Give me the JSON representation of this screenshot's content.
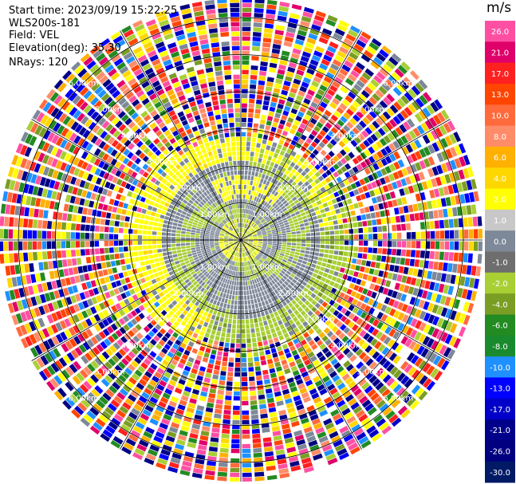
{
  "info": {
    "start_label": "Start time:",
    "start_time": "2023/09/19 15:22:25",
    "site": "WLS200s-181",
    "field_label": "Field:",
    "field": "VEL",
    "elevation_label": "Elevation(deg):",
    "elevation": "35.30",
    "nrays_label": "NRays:",
    "nrays": "120"
  },
  "chart_data": {
    "type": "heatmap",
    "projection": "polar-ppi",
    "field": "VEL",
    "units": "m/s",
    "nrays": 120,
    "range_rings_km": [
      1.0,
      2.0,
      3.0,
      4.0,
      5.0,
      6.0
    ],
    "range_ring_labels": [
      "1.00km",
      "2.00km",
      "3.00km",
      "4.00km",
      "5.00km",
      "6.00km"
    ],
    "radial_lines": 12,
    "colorbar": {
      "ticks": [
        "26.0",
        "21.0",
        "17.0",
        "13.0",
        "10.0",
        "8.0",
        "6.0",
        "4.0",
        "2.0",
        "1.0",
        "0.0",
        "-1.0",
        "-2.0",
        "-4.0",
        "-6.0",
        "-8.0",
        "-10.0",
        "-13.0",
        "-17.0",
        "-21.0",
        "-26.0",
        "-30.0"
      ],
      "colors": [
        "#ff4fa3",
        "#e0006a",
        "#ff2020",
        "#ff4500",
        "#ff6a3c",
        "#ff8c69",
        "#ffb000",
        "#ffd700",
        "#ffff00",
        "#c8c8c8",
        "#7d8898",
        "#6e6e6e",
        "#a8cf34",
        "#7a9d24",
        "#228b22",
        "#1a8a2e",
        "#1e90ff",
        "#0000ff",
        "#0000c8",
        "#00008b",
        "#000080",
        "#001a66"
      ]
    },
    "regions": [
      {
        "range_km": [
          0.0,
          0.45
        ],
        "dominant_values_m_s": [
          0.0,
          2.0,
          -2.0
        ]
      },
      {
        "range_km": [
          0.45,
          2.1
        ],
        "dominant_values_m_s": [
          0.0,
          -2.0,
          2.0
        ]
      },
      {
        "range_km": [
          2.1,
          2.7
        ],
        "dominant_values_m_s": [
          2.0,
          -2.0
        ]
      },
      {
        "range_km": [
          2.7,
          6.6
        ],
        "dominant_values_m_s": [
          "noise",
          -30.0,
          26.0
        ]
      }
    ]
  }
}
